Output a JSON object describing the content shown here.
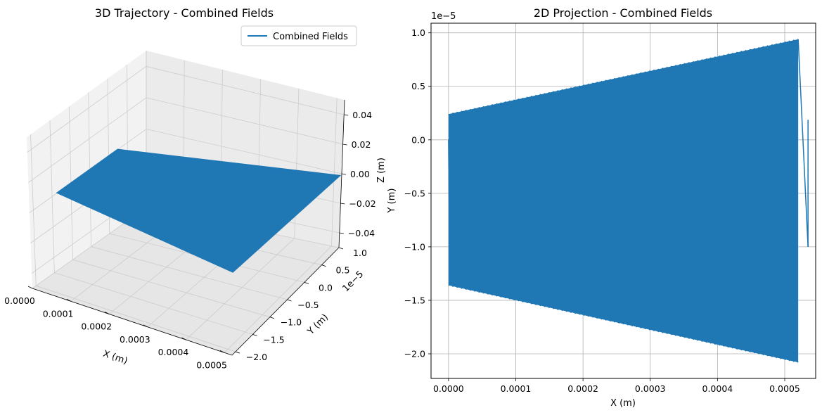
{
  "colors": {
    "series": "#1f77b4",
    "pane_light": "#f2f2f2",
    "pane_mid": "#ebebeb",
    "pane_dark": "#e6e6e6",
    "grid3d": "#cccccc",
    "grid2d": "#b0b0b0",
    "axis": "#000000",
    "text": "#000000"
  },
  "chart_data": [
    {
      "type": "line",
      "projection": "3d",
      "title": "3D Trajectory - Combined Fields",
      "xlabel": "X (m)",
      "ylabel": "Y (m)",
      "zlabel": "Z (m)",
      "xlim": [
        0.0,
        0.00052
      ],
      "ylim": [
        -2.1e-05,
        1e-05
      ],
      "zlim": [
        -0.05,
        0.05
      ],
      "x_ticks": [
        "0.0000",
        "0.0001",
        "0.0002",
        "0.0003",
        "0.0004",
        "0.0005"
      ],
      "y_ticks": [
        "−2.0",
        "−1.5",
        "−1.0",
        "−0.5",
        "0.0",
        "0.5",
        "1.0"
      ],
      "y_offset": "1e−5",
      "z_ticks": [
        "−0.04",
        "−0.02",
        "0.00",
        "0.02",
        "0.04"
      ],
      "grid": true,
      "legend": {
        "position": "top-right",
        "entries": [
          "Combined Fields"
        ]
      },
      "series": [
        {
          "name": "Combined Fields",
          "x_range": [
            0.0,
            0.00052
          ],
          "y_envelope": {
            "x": [
              0.0,
              0.00052
            ],
            "upper": [
              2.4e-06,
              9.4e-06
            ],
            "lower": [
              -1.36e-05,
              -2.08e-05
            ]
          },
          "z": 0.0
        }
      ]
    },
    {
      "type": "line",
      "projection": "2d",
      "title": "2D Projection - Combined Fields",
      "xlabel": "X (m)",
      "ylabel": "Y (m)",
      "xlim": [
        -2.6e-05,
        0.000546
      ],
      "ylim": [
        -2.23e-05,
        1.09e-05
      ],
      "x_ticks": [
        "0.0000",
        "0.0001",
        "0.0002",
        "0.0003",
        "0.0004",
        "0.0005"
      ],
      "y_ticks": [
        "−2.0",
        "−1.5",
        "−1.0",
        "−0.5",
        "0.0",
        "0.5",
        "1.0"
      ],
      "y_offset": "1e−5",
      "grid": true,
      "series": [
        {
          "name": "Combined Fields",
          "x_range": [
            0.0,
            0.00052
          ],
          "y_start": 0.0,
          "y_end": -1e-05,
          "envelope_upper": [
            [
              0.0,
              2.4e-06
            ],
            [
              0.00052,
              9.4e-06
            ]
          ],
          "envelope_lower": [
            [
              0.0,
              -1.36e-05
            ],
            [
              0.00052,
              -2.08e-05
            ]
          ],
          "oscillation_periods": 160
        }
      ]
    }
  ]
}
